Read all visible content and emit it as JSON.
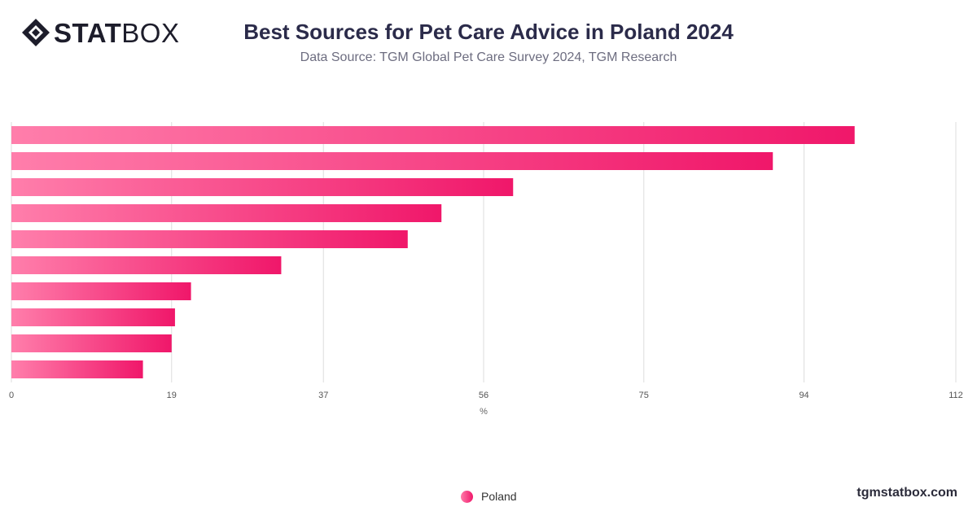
{
  "brand": {
    "logo_bold": "STAT",
    "logo_light": "BOX",
    "website": "tgmstatbox.com"
  },
  "header": {
    "title": "Best Sources for Pet Care Advice in Poland 2024",
    "subtitle": "Data Source: TGM Global Pet Care Survey 2024, TGM Research"
  },
  "chart_data": {
    "type": "bar",
    "orientation": "horizontal",
    "title": "Best Sources for Pet Care Advice in Poland 2024",
    "xlabel": "%",
    "ylabel": "",
    "xlim": [
      0,
      112
    ],
    "xticks": [
      "0",
      "19",
      "37",
      "56",
      "75",
      "94",
      "112"
    ],
    "grid": true,
    "legend_position": "bottom",
    "series": [
      {
        "name": "Poland",
        "values": [
          100,
          90.3,
          59.5,
          51,
          47,
          32,
          21.3,
          19.4,
          19,
          15.6
        ]
      }
    ],
    "colors": {
      "bar_light": "#ff7eab",
      "bar_dark": "#f0176a",
      "grid": "#dddddd"
    }
  },
  "legend": {
    "items": [
      {
        "label": "Poland"
      }
    ]
  }
}
